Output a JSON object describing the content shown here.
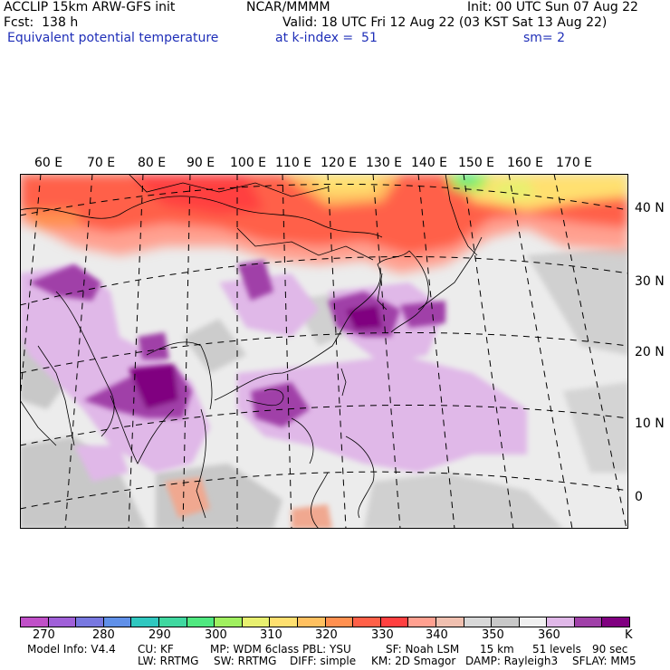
{
  "header": {
    "model": "ACCLIP 15km ARW-GFS init",
    "center": "NCAR/MMMM",
    "init": "Init: 00 UTC Sun 07 Aug 22",
    "fcst": "Fcst:  138 h",
    "valid": "Valid: 18 UTC Fri 12 Aug 22 (03 KST Sat 13 Aug 22)",
    "field": "Equivalent potential temperature",
    "level": "at k-index =  51",
    "smooth": "sm= 2"
  },
  "axes": {
    "lon_labels": [
      "60 E",
      "70 E",
      "80 E",
      "90 E",
      "100 E",
      "110 E",
      "120 E",
      "130 E",
      "140 E",
      "150 E",
      "160 E",
      "170 E"
    ],
    "lat_labels": [
      "40 N",
      "30 N",
      "20 N",
      "10 N",
      "0"
    ]
  },
  "colorbar": {
    "colors": [
      "#c050c8",
      "#a060d8",
      "#7878e0",
      "#6090e8",
      "#30c8c0",
      "#40d8a0",
      "#50e880",
      "#a0f060",
      "#e8f070",
      "#ffe070",
      "#ffc060",
      "#ff9050",
      "#ff6048",
      "#ff4040",
      "#ffa090",
      "#f0c0b0",
      "#d8d8d8",
      "#c8c8c8",
      "#f0f0f0",
      "#e0b8e8",
      "#a040a8",
      "#800080"
    ],
    "ticks": [
      "270",
      "280",
      "290",
      "300",
      "310",
      "320",
      "330",
      "340",
      "350",
      "360"
    ],
    "unit": "K"
  },
  "footer": {
    "line1": [
      "Model Info: V4.4",
      "CU: KF",
      "MP: WDM 6class",
      "PBL: YSU",
      "SF: Noah LSM",
      "15 km",
      "51 levels",
      "90 sec"
    ],
    "line2": [
      "LW: RRTMG",
      "SW: RRTMG",
      "DIFF: simple",
      "KM: 2D Smagor",
      "DAMP: Rayleigh3",
      "SFLAY: MM5"
    ]
  }
}
